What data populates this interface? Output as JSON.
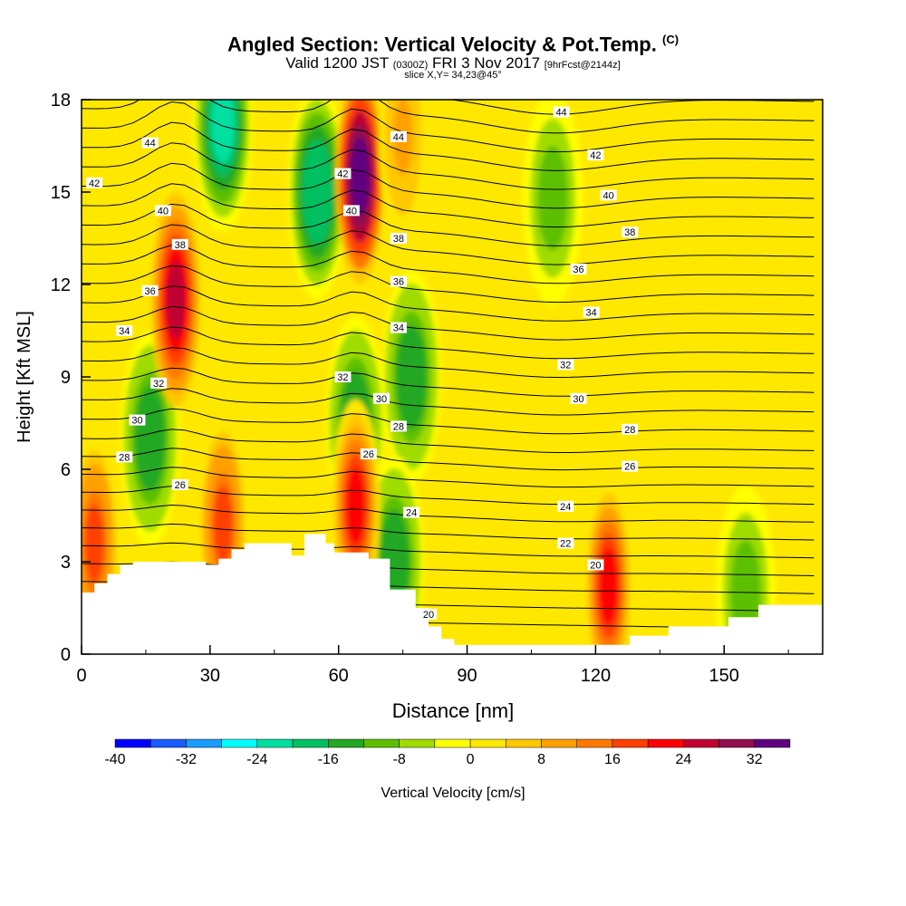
{
  "header": {
    "title_main": "Angled Section: Vertical Velocity & Pot.Temp.",
    "title_mark": "(C)",
    "valid_a": "Valid 1200 JST",
    "valid_b": "(0300Z)",
    "valid_c": "FRI 3 Nov 2017",
    "valid_d": "[9hrFcst@2144z]",
    "slice": "slice X,Y= 34,23@45°"
  },
  "chart_data": {
    "type": "heatmap",
    "xlabel": "Distance [nm]",
    "ylabel": "Height [Kft MSL]",
    "xlim": [
      0,
      173
    ],
    "ylim": [
      0,
      18
    ],
    "x_ticks": [
      0,
      30,
      60,
      90,
      120,
      150
    ],
    "y_ticks": [
      0,
      3,
      6,
      9,
      12,
      15,
      18
    ],
    "colorbar": {
      "label": "Vertical Velocity [cm/s]",
      "tick_labels": [
        -40,
        -32,
        -24,
        -16,
        -8,
        0,
        8,
        16,
        24,
        32
      ],
      "levels": [
        -40,
        -36,
        -32,
        -28,
        -24,
        -20,
        -16,
        -12,
        -8,
        -4,
        0,
        4,
        8,
        12,
        16,
        20,
        24,
        28,
        32,
        36
      ],
      "colors": [
        "#0000ff",
        "#1a5cff",
        "#1a9cff",
        "#00ffff",
        "#00e0a0",
        "#00c060",
        "#22a822",
        "#5cc000",
        "#a0dc00",
        "#ffff00",
        "#ffe800",
        "#ffc800",
        "#ffa000",
        "#ff7800",
        "#ff4000",
        "#ff0000",
        "#c00030",
        "#901050",
        "#600080"
      ]
    },
    "terrain": [
      [
        0,
        2
      ],
      [
        3,
        2
      ],
      [
        3,
        2.3
      ],
      [
        6,
        2.3
      ],
      [
        6,
        2.6
      ],
      [
        9,
        2.6
      ],
      [
        9,
        2.9
      ],
      [
        12,
        2.9
      ],
      [
        12,
        3.0
      ],
      [
        29,
        3.0
      ],
      [
        29,
        2.9
      ],
      [
        32,
        2.9
      ],
      [
        32,
        3.1
      ],
      [
        35,
        3.1
      ],
      [
        35,
        3.4
      ],
      [
        38,
        3.4
      ],
      [
        38,
        3.6
      ],
      [
        49,
        3.6
      ],
      [
        49,
        3.2
      ],
      [
        52,
        3.2
      ],
      [
        52,
        3.9
      ],
      [
        57,
        3.9
      ],
      [
        57,
        3.6
      ],
      [
        59,
        3.6
      ],
      [
        59,
        3.3
      ],
      [
        67,
        3.3
      ],
      [
        67,
        3.1
      ],
      [
        72,
        3.1
      ],
      [
        72,
        2.1
      ],
      [
        78,
        2.1
      ],
      [
        78,
        1.5
      ],
      [
        81,
        1.5
      ],
      [
        81,
        0.9
      ],
      [
        84,
        0.9
      ],
      [
        84,
        0.5
      ],
      [
        87,
        0.5
      ],
      [
        87,
        0.3
      ],
      [
        128,
        0.3
      ],
      [
        128,
        0.6
      ],
      [
        137,
        0.6
      ],
      [
        137,
        0.9
      ],
      [
        151,
        0.9
      ],
      [
        151,
        1.2
      ],
      [
        158,
        1.2
      ],
      [
        158,
        1.6
      ],
      [
        173,
        1.6
      ]
    ],
    "updraft_cores": [
      {
        "x": 22,
        "y": 11.5,
        "w_max": 24
      },
      {
        "x": 65,
        "y": 15.5,
        "w_max": 36
      },
      {
        "x": 64,
        "y": 4.8,
        "w_max": 20
      },
      {
        "x": 33,
        "y": 4.2,
        "w_max": 16
      },
      {
        "x": 3,
        "y": 3.6,
        "w_max": 16
      },
      {
        "x": 123,
        "y": 2.2,
        "w_max": 20
      },
      {
        "x": 75,
        "y": 16.8,
        "w_max": 8
      }
    ],
    "downdraft_cores": [
      {
        "x": 16,
        "y": 7.0,
        "w_min": -16
      },
      {
        "x": 55,
        "y": 15,
        "w_min": -20
      },
      {
        "x": 33,
        "y": 17.2,
        "w_min": -24
      },
      {
        "x": 77,
        "y": 9.0,
        "w_min": -16
      },
      {
        "x": 64,
        "y": 7.5,
        "w_min": -16
      },
      {
        "x": 73,
        "y": 3.0,
        "w_min": -16
      },
      {
        "x": 110,
        "y": 14.8,
        "w_min": -12
      },
      {
        "x": 155,
        "y": 2.0,
        "w_min": -12
      }
    ],
    "theta_labels": [
      {
        "t": "44",
        "x": 16,
        "y": 16.6
      },
      {
        "t": "42",
        "x": 3,
        "y": 15.3
      },
      {
        "t": "40",
        "x": 19,
        "y": 14.4
      },
      {
        "t": "38",
        "x": 23,
        "y": 13.3
      },
      {
        "t": "36",
        "x": 16,
        "y": 11.8
      },
      {
        "t": "34",
        "x": 10,
        "y": 10.5
      },
      {
        "t": "32",
        "x": 18,
        "y": 8.8
      },
      {
        "t": "30",
        "x": 13,
        "y": 7.6
      },
      {
        "t": "28",
        "x": 10,
        "y": 6.4
      },
      {
        "t": "26",
        "x": 23,
        "y": 5.5
      },
      {
        "t": "44",
        "x": 74,
        "y": 16.8
      },
      {
        "t": "42",
        "x": 61,
        "y": 15.6
      },
      {
        "t": "40",
        "x": 63,
        "y": 14.4
      },
      {
        "t": "38",
        "x": 74,
        "y": 13.5
      },
      {
        "t": "36",
        "x": 74,
        "y": 12.1
      },
      {
        "t": "34",
        "x": 74,
        "y": 10.6
      },
      {
        "t": "32",
        "x": 61,
        "y": 9.0
      },
      {
        "t": "30",
        "x": 70,
        "y": 8.3
      },
      {
        "t": "28",
        "x": 74,
        "y": 7.4
      },
      {
        "t": "26",
        "x": 67,
        "y": 6.5
      },
      {
        "t": "24",
        "x": 77,
        "y": 4.6
      },
      {
        "t": "20",
        "x": 81,
        "y": 1.3
      },
      {
        "t": "44",
        "x": 112,
        "y": 17.6
      },
      {
        "t": "42",
        "x": 120,
        "y": 16.2
      },
      {
        "t": "40",
        "x": 123,
        "y": 14.9
      },
      {
        "t": "38",
        "x": 128,
        "y": 13.7
      },
      {
        "t": "36",
        "x": 116,
        "y": 12.5
      },
      {
        "t": "34",
        "x": 119,
        "y": 11.1
      },
      {
        "t": "32",
        "x": 113,
        "y": 9.4
      },
      {
        "t": "30",
        "x": 116,
        "y": 8.3
      },
      {
        "t": "28",
        "x": 128,
        "y": 7.3
      },
      {
        "t": "26",
        "x": 128,
        "y": 6.1
      },
      {
        "t": "24",
        "x": 113,
        "y": 4.8
      },
      {
        "t": "22",
        "x": 113,
        "y": 3.6
      },
      {
        "t": "20",
        "x": 120,
        "y": 2.9
      }
    ]
  }
}
